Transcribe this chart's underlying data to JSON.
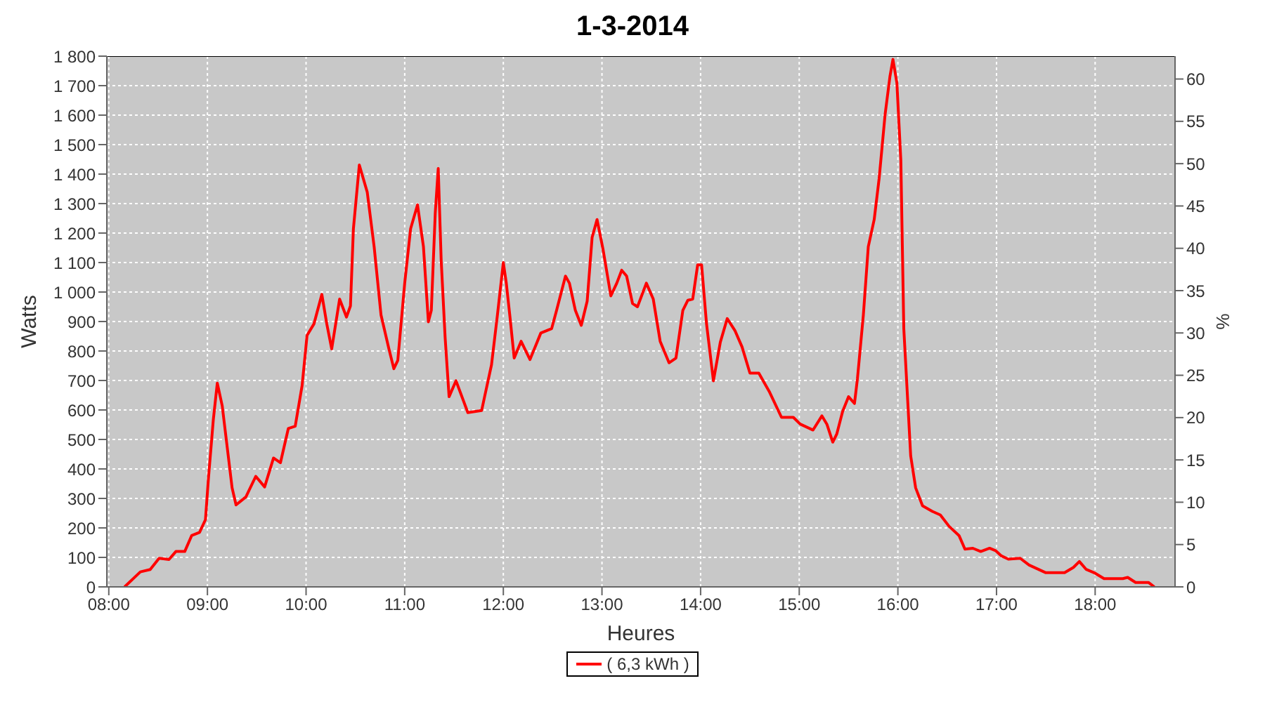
{
  "chart_data": {
    "type": "line",
    "title": "1-3-2014",
    "xlabel": "Heures",
    "ylabel": "Watts",
    "y2label": "%",
    "x": [
      8.16,
      8.32,
      8.42,
      8.51,
      8.61,
      8.68,
      8.77,
      8.84,
      8.92,
      8.98,
      9.01,
      9.06,
      9.1,
      9.15,
      9.2,
      9.25,
      9.29,
      9.39,
      9.49,
      9.58,
      9.67,
      9.74,
      9.82,
      9.89,
      9.96,
      10.01,
      10.08,
      10.16,
      10.21,
      10.26,
      10.34,
      10.41,
      10.45,
      10.48,
      10.54,
      10.62,
      10.69,
      10.76,
      10.84,
      10.89,
      10.93,
      11.0,
      11.06,
      11.13,
      11.19,
      11.24,
      11.27,
      11.31,
      11.34,
      11.37,
      11.41,
      11.45,
      11.52,
      11.64,
      11.78,
      11.81,
      11.88,
      11.94,
      12.0,
      12.03,
      12.07,
      12.11,
      12.18,
      12.27,
      12.38,
      12.49,
      12.54,
      12.63,
      12.67,
      12.73,
      12.79,
      12.85,
      12.9,
      12.95,
      13.01,
      13.09,
      13.15,
      13.2,
      13.25,
      13.31,
      13.36,
      13.45,
      13.52,
      13.59,
      13.68,
      13.75,
      13.82,
      13.87,
      13.92,
      13.97,
      14.01,
      14.06,
      14.13,
      14.2,
      14.27,
      14.35,
      14.42,
      14.5,
      14.59,
      14.7,
      14.82,
      14.94,
      15.01,
      15.14,
      15.23,
      15.28,
      15.34,
      15.38,
      15.44,
      15.5,
      15.56,
      15.59,
      15.65,
      15.7,
      15.76,
      15.81,
      15.87,
      15.92,
      15.95,
      15.99,
      16.03,
      16.06,
      16.1,
      16.13,
      16.18,
      16.25,
      16.35,
      16.43,
      16.52,
      16.62,
      16.68,
      16.76,
      16.84,
      16.93,
      16.99,
      17.05,
      17.12,
      17.24,
      17.33,
      17.5,
      17.69,
      17.78,
      17.84,
      17.91,
      17.99,
      18.09,
      18.28,
      18.33,
      18.41,
      18.54,
      18.6
    ],
    "series": [
      {
        "name": "( 6,3 kWh )",
        "color": "#ff0000",
        "values": [
          0,
          51,
          59,
          97,
          93,
          120,
          120,
          174,
          185,
          228,
          367,
          568,
          691,
          614,
          475,
          336,
          278,
          305,
          375,
          339,
          437,
          421,
          537,
          545,
          683,
          853,
          892,
          992,
          892,
          807,
          976,
          915,
          953,
          1215,
          1431,
          1339,
          1154,
          922,
          807,
          740,
          768,
          1030,
          1215,
          1296,
          1154,
          899,
          938,
          1269,
          1419,
          1107,
          845,
          645,
          699,
          591,
          598,
          645,
          753,
          922,
          1100,
          1030,
          907,
          776,
          833,
          771,
          861,
          876,
          938,
          1054,
          1030,
          938,
          887,
          969,
          1185,
          1246,
          1146,
          987,
          1030,
          1074,
          1054,
          961,
          950,
          1030,
          976,
          833,
          760,
          776,
          938,
          972,
          976,
          1092,
          1092,
          892,
          699,
          830,
          910,
          868,
          814,
          725,
          725,
          660,
          575,
          575,
          552,
          532,
          580,
          552,
          491,
          518,
          595,
          645,
          622,
          706,
          922,
          1154,
          1246,
          1385,
          1601,
          1732,
          1789,
          1709,
          1447,
          876,
          629,
          444,
          336,
          275,
          256,
          244,
          205,
          174,
          128,
          131,
          120,
          131,
          123,
          105,
          94,
          97,
          74,
          48,
          48,
          66,
          86,
          59,
          48,
          28,
          28,
          32,
          15,
          15,
          0
        ]
      }
    ],
    "xlim": [
      7.98,
      18.81
    ],
    "xticks": [
      {
        "value": 8,
        "label": "08:00"
      },
      {
        "value": 9,
        "label": "09:00"
      },
      {
        "value": 10,
        "label": "10:00"
      },
      {
        "value": 11,
        "label": "11:00"
      },
      {
        "value": 12,
        "label": "12:00"
      },
      {
        "value": 13,
        "label": "13:00"
      },
      {
        "value": 14,
        "label": "14:00"
      },
      {
        "value": 15,
        "label": "15:00"
      },
      {
        "value": 16,
        "label": "16:00"
      },
      {
        "value": 17,
        "label": "17:00"
      },
      {
        "value": 18,
        "label": "18:00"
      }
    ],
    "ylim": [
      0,
      1800
    ],
    "yticks": [
      {
        "value": 0,
        "label": "0"
      },
      {
        "value": 100,
        "label": "100"
      },
      {
        "value": 200,
        "label": "200"
      },
      {
        "value": 300,
        "label": "300"
      },
      {
        "value": 400,
        "label": "400"
      },
      {
        "value": 500,
        "label": "500"
      },
      {
        "value": 600,
        "label": "600"
      },
      {
        "value": 700,
        "label": "700"
      },
      {
        "value": 800,
        "label": "800"
      },
      {
        "value": 900,
        "label": "900"
      },
      {
        "value": 1000,
        "label": "1 000"
      },
      {
        "value": 1100,
        "label": "1 100"
      },
      {
        "value": 1200,
        "label": "1 200"
      },
      {
        "value": 1300,
        "label": "1 300"
      },
      {
        "value": 1400,
        "label": "1 400"
      },
      {
        "value": 1500,
        "label": "1 500"
      },
      {
        "value": 1600,
        "label": "1 600"
      },
      {
        "value": 1700,
        "label": "1 700"
      },
      {
        "value": 1800,
        "label": "1 800"
      }
    ],
    "y2lim": [
      0,
      62.7
    ],
    "y2ticks": [
      0,
      5,
      10,
      15,
      20,
      25,
      30,
      35,
      40,
      45,
      50,
      55,
      60
    ],
    "grid": true,
    "legend": "bottom",
    "marker": "none",
    "line_style": "solid"
  }
}
